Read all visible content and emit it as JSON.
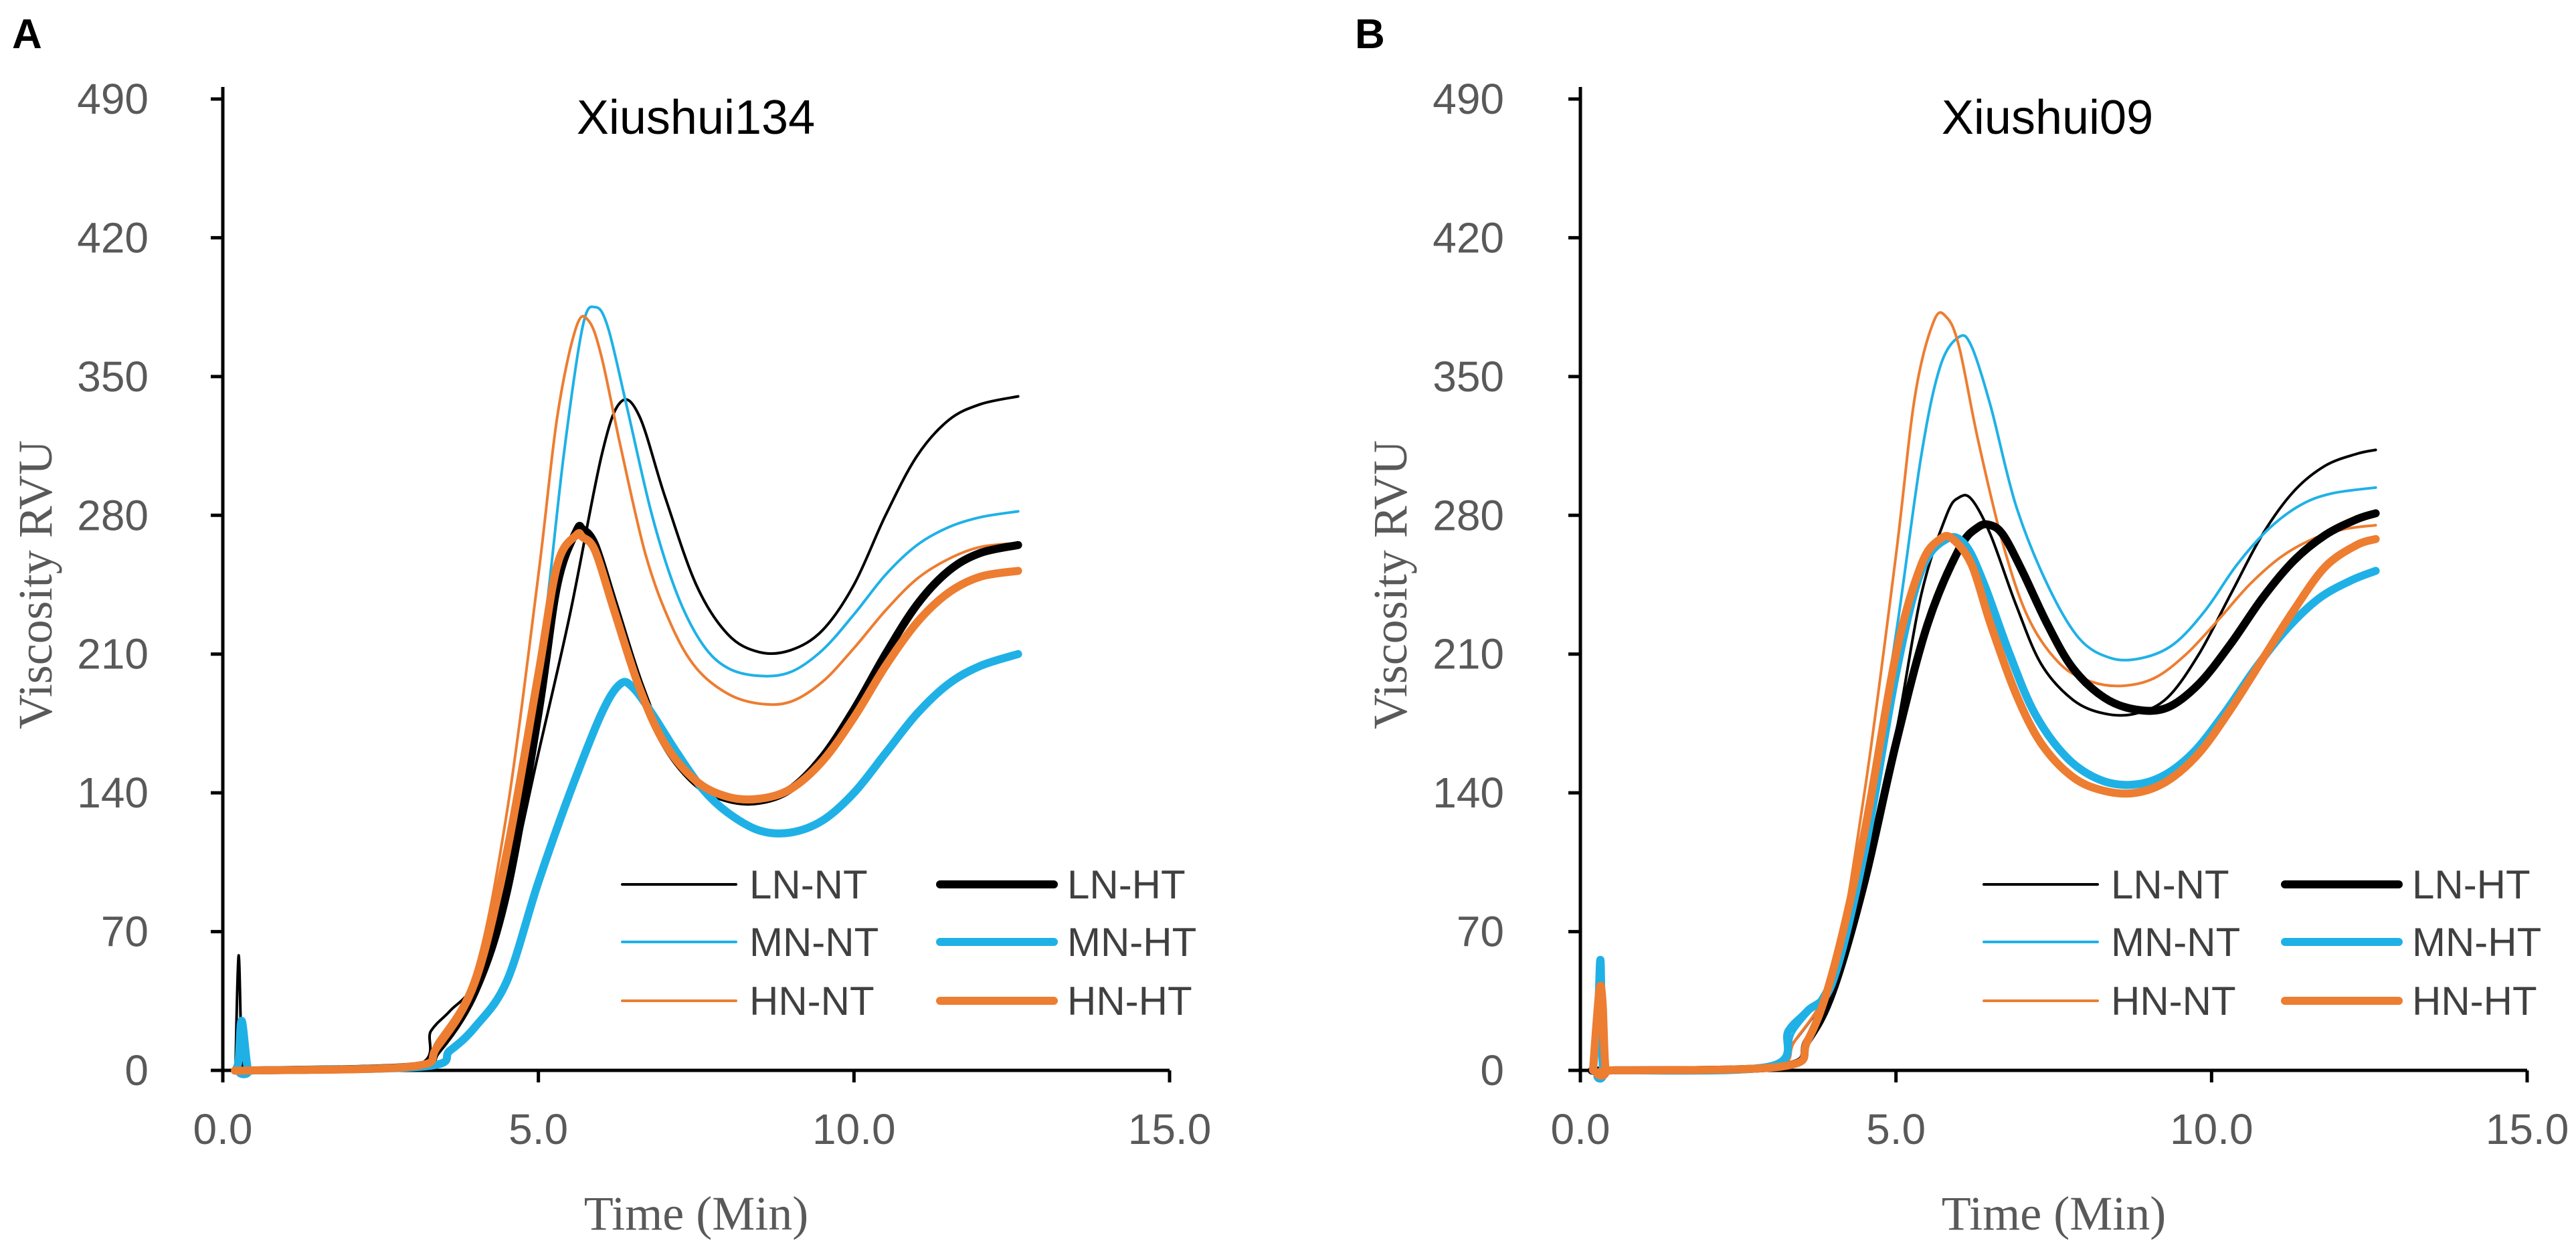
{
  "figure": {
    "panel_labels": [
      "A",
      "B"
    ]
  },
  "chart_data": [
    {
      "type": "line",
      "panel": "A",
      "title": "Xiushui134",
      "xlabel": "Time (Min)",
      "ylabel": "Viscosity RVU",
      "xlim": [
        0,
        15
      ],
      "ylim": [
        0,
        490
      ],
      "xticks": [
        "0.0",
        "5.0",
        "10.0",
        "15.0"
      ],
      "yticks": [
        "0",
        "70",
        "140",
        "210",
        "280",
        "350",
        "420",
        "490"
      ],
      "legend_position": "bottom-right",
      "series": [
        {
          "name": "LN-NT",
          "color": "#000000",
          "weight": "thin",
          "x": [
            0.2,
            0.25,
            0.3,
            0.35,
            0.5,
            3.0,
            3.3,
            3.6,
            4.0,
            4.5,
            5.0,
            5.5,
            6.0,
            6.3,
            6.6,
            7.0,
            7.5,
            8.0,
            8.5,
            9.0,
            9.5,
            10.0,
            10.5,
            11.0,
            11.5,
            12.0,
            12.6
          ],
          "values": [
            0,
            58,
            5,
            0,
            0,
            2,
            20,
            30,
            45,
            90,
            160,
            230,
            310,
            337,
            330,
            290,
            245,
            220,
            211,
            212,
            222,
            245,
            280,
            310,
            328,
            336,
            340
          ]
        },
        {
          "name": "MN-NT",
          "color": "#1FB1E6",
          "weight": "thin",
          "x": [
            0.2,
            0.3,
            0.4,
            0.5,
            3.0,
            3.4,
            4.0,
            4.5,
            5.0,
            5.4,
            5.7,
            5.9,
            6.1,
            6.4,
            6.8,
            7.2,
            7.6,
            8.0,
            8.5,
            9.0,
            9.5,
            10.0,
            10.5,
            11.0,
            11.5,
            12.0,
            12.6
          ],
          "values": [
            0,
            20,
            0,
            0,
            2,
            15,
            45,
            110,
            200,
            310,
            375,
            385,
            375,
            335,
            280,
            240,
            215,
            203,
            199,
            201,
            212,
            230,
            250,
            265,
            274,
            279,
            282
          ]
        },
        {
          "name": "HN-NT",
          "color": "#ED7D31",
          "weight": "thin",
          "x": [
            0.2,
            0.5,
            3.0,
            3.4,
            4.0,
            4.5,
            5.0,
            5.3,
            5.6,
            5.8,
            6.0,
            6.3,
            6.7,
            7.1,
            7.5,
            8.0,
            8.5,
            9.0,
            9.5,
            10.0,
            10.5,
            11.0,
            11.5,
            12.0,
            12.6
          ],
          "values": [
            0,
            0,
            2,
            15,
            50,
            130,
            250,
            330,
            375,
            378,
            360,
            315,
            260,
            225,
            203,
            190,
            185,
            186,
            196,
            213,
            232,
            248,
            258,
            264,
            266
          ]
        },
        {
          "name": "LN-HT",
          "color": "#000000",
          "weight": "thick",
          "x": [
            0.2,
            0.5,
            3.0,
            3.4,
            4.0,
            4.5,
            5.0,
            5.3,
            5.6,
            5.7,
            5.9,
            6.2,
            6.6,
            7.0,
            7.5,
            8.0,
            8.5,
            9.0,
            9.5,
            10.0,
            10.5,
            11.0,
            11.5,
            12.0,
            12.6
          ],
          "values": [
            0,
            0,
            2,
            10,
            40,
            90,
            180,
            245,
            272,
            273,
            265,
            235,
            195,
            165,
            145,
            137,
            136,
            142,
            158,
            182,
            210,
            235,
            252,
            261,
            265
          ]
        },
        {
          "name": "MN-HT",
          "color": "#1FB1E6",
          "weight": "thick",
          "x": [
            0.2,
            0.25,
            0.3,
            0.4,
            0.5,
            3.2,
            3.6,
            4.0,
            4.5,
            5.0,
            5.5,
            6.0,
            6.3,
            6.5,
            6.8,
            7.2,
            7.6,
            8.0,
            8.5,
            9.0,
            9.5,
            10.0,
            10.5,
            11.0,
            11.5,
            12.0,
            12.6
          ],
          "values": [
            0,
            5,
            25,
            0,
            0,
            2,
            10,
            22,
            45,
            95,
            140,
            180,
            195,
            193,
            180,
            160,
            142,
            130,
            121,
            120,
            126,
            140,
            160,
            180,
            195,
            204,
            210
          ]
        },
        {
          "name": "HN-HT",
          "color": "#ED7D31",
          "weight": "thick",
          "x": [
            0.2,
            0.5,
            3.0,
            3.4,
            4.0,
            4.5,
            5.0,
            5.3,
            5.6,
            5.7,
            5.9,
            6.2,
            6.6,
            7.0,
            7.5,
            8.0,
            8.5,
            9.0,
            9.5,
            10.0,
            10.5,
            11.0,
            11.5,
            12.0,
            12.6
          ],
          "values": [
            0,
            0,
            2,
            12,
            45,
            110,
            200,
            255,
            270,
            269,
            262,
            232,
            193,
            165,
            146,
            138,
            137,
            142,
            156,
            178,
            204,
            226,
            241,
            249,
            252
          ]
        }
      ]
    },
    {
      "type": "line",
      "panel": "B",
      "title": "Xiushui09",
      "xlabel": "Time (Min)",
      "ylabel": "Viscosity RVU",
      "xlim": [
        0,
        15
      ],
      "ylim": [
        0,
        490
      ],
      "xticks": [
        "0.0",
        "5.0",
        "10.0",
        "15.0"
      ],
      "yticks": [
        "0",
        "70",
        "140",
        "210",
        "280",
        "350",
        "420",
        "490"
      ],
      "legend_position": "bottom-right",
      "series": [
        {
          "name": "LN-NT",
          "color": "#000000",
          "weight": "thin",
          "x": [
            0.2,
            0.5,
            3.0,
            3.4,
            4.0,
            4.5,
            5.0,
            5.4,
            5.8,
            6.0,
            6.2,
            6.5,
            6.9,
            7.3,
            7.8,
            8.3,
            8.8,
            9.3,
            9.8,
            10.3,
            10.8,
            11.3,
            11.8,
            12.3,
            12.6
          ],
          "values": [
            0,
            0,
            2,
            15,
            45,
            100,
            170,
            240,
            280,
            289,
            288,
            270,
            235,
            205,
            187,
            180,
            180,
            188,
            210,
            240,
            270,
            292,
            305,
            311,
            313
          ]
        },
        {
          "name": "MN-NT",
          "color": "#1FB1E6",
          "weight": "thin",
          "x": [
            0.2,
            0.28,
            0.32,
            0.36,
            0.5,
            3.0,
            3.4,
            4.0,
            4.5,
            5.0,
            5.4,
            5.7,
            6.0,
            6.2,
            6.5,
            6.9,
            7.4,
            7.9,
            8.4,
            8.9,
            9.4,
            9.9,
            10.4,
            10.9,
            11.4,
            11.9,
            12.6
          ],
          "values": [
            0,
            30,
            55,
            0,
            0,
            2,
            20,
            50,
            120,
            220,
            310,
            355,
            370,
            365,
            335,
            285,
            245,
            218,
            208,
            208,
            215,
            232,
            255,
            273,
            285,
            291,
            294
          ]
        },
        {
          "name": "HN-NT",
          "color": "#ED7D31",
          "weight": "thin",
          "x": [
            0.2,
            0.5,
            3.0,
            3.4,
            4.0,
            4.5,
            5.0,
            5.3,
            5.6,
            5.8,
            6.0,
            6.3,
            6.7,
            7.1,
            7.6,
            8.1,
            8.6,
            9.1,
            9.6,
            10.1,
            10.6,
            11.1,
            11.6,
            12.1,
            12.6
          ],
          "values": [
            0,
            0,
            2,
            15,
            50,
            140,
            260,
            340,
            378,
            380,
            365,
            318,
            265,
            228,
            205,
            196,
            194,
            198,
            210,
            227,
            245,
            259,
            268,
            273,
            275
          ]
        },
        {
          "name": "LN-HT",
          "color": "#000000",
          "weight": "thick",
          "x": [
            0.2,
            0.5,
            3.2,
            3.6,
            4.0,
            4.5,
            5.0,
            5.5,
            6.0,
            6.3,
            6.5,
            6.7,
            7.0,
            7.4,
            7.8,
            8.3,
            8.8,
            9.3,
            9.8,
            10.3,
            10.8,
            11.3,
            11.8,
            12.3,
            12.6
          ],
          "values": [
            0,
            0,
            2,
            15,
            40,
            95,
            165,
            225,
            263,
            274,
            275,
            270,
            252,
            225,
            203,
            188,
            182,
            183,
            195,
            215,
            238,
            257,
            270,
            278,
            281
          ]
        },
        {
          "name": "MN-HT",
          "color": "#1FB1E6",
          "weight": "thick",
          "x": [
            0.2,
            0.28,
            0.32,
            0.36,
            0.5,
            3.0,
            3.3,
            3.6,
            4.0,
            4.5,
            5.0,
            5.4,
            5.8,
            6.1,
            6.4,
            6.8,
            7.2,
            7.7,
            8.2,
            8.7,
            9.2,
            9.7,
            10.2,
            10.7,
            11.2,
            11.7,
            12.2,
            12.6
          ],
          "values": [
            0,
            30,
            55,
            0,
            0,
            2,
            20,
            30,
            45,
            110,
            200,
            252,
            268,
            265,
            245,
            210,
            180,
            158,
            147,
            144,
            148,
            160,
            180,
            203,
            223,
            238,
            247,
            252
          ]
        },
        {
          "name": "HN-HT",
          "color": "#ED7D31",
          "weight": "thick",
          "x": [
            0.2,
            0.3,
            0.35,
            0.4,
            0.5,
            3.2,
            3.6,
            4.0,
            4.5,
            5.0,
            5.4,
            5.7,
            5.9,
            6.2,
            6.5,
            6.9,
            7.3,
            7.8,
            8.3,
            8.8,
            9.3,
            9.8,
            10.3,
            10.8,
            11.3,
            11.8,
            12.3,
            12.6
          ],
          "values": [
            0,
            40,
            35,
            0,
            0,
            2,
            15,
            50,
            120,
            210,
            255,
            268,
            268,
            255,
            225,
            190,
            165,
            148,
            141,
            140,
            146,
            160,
            182,
            207,
            232,
            254,
            265,
            268
          ]
        }
      ]
    }
  ]
}
